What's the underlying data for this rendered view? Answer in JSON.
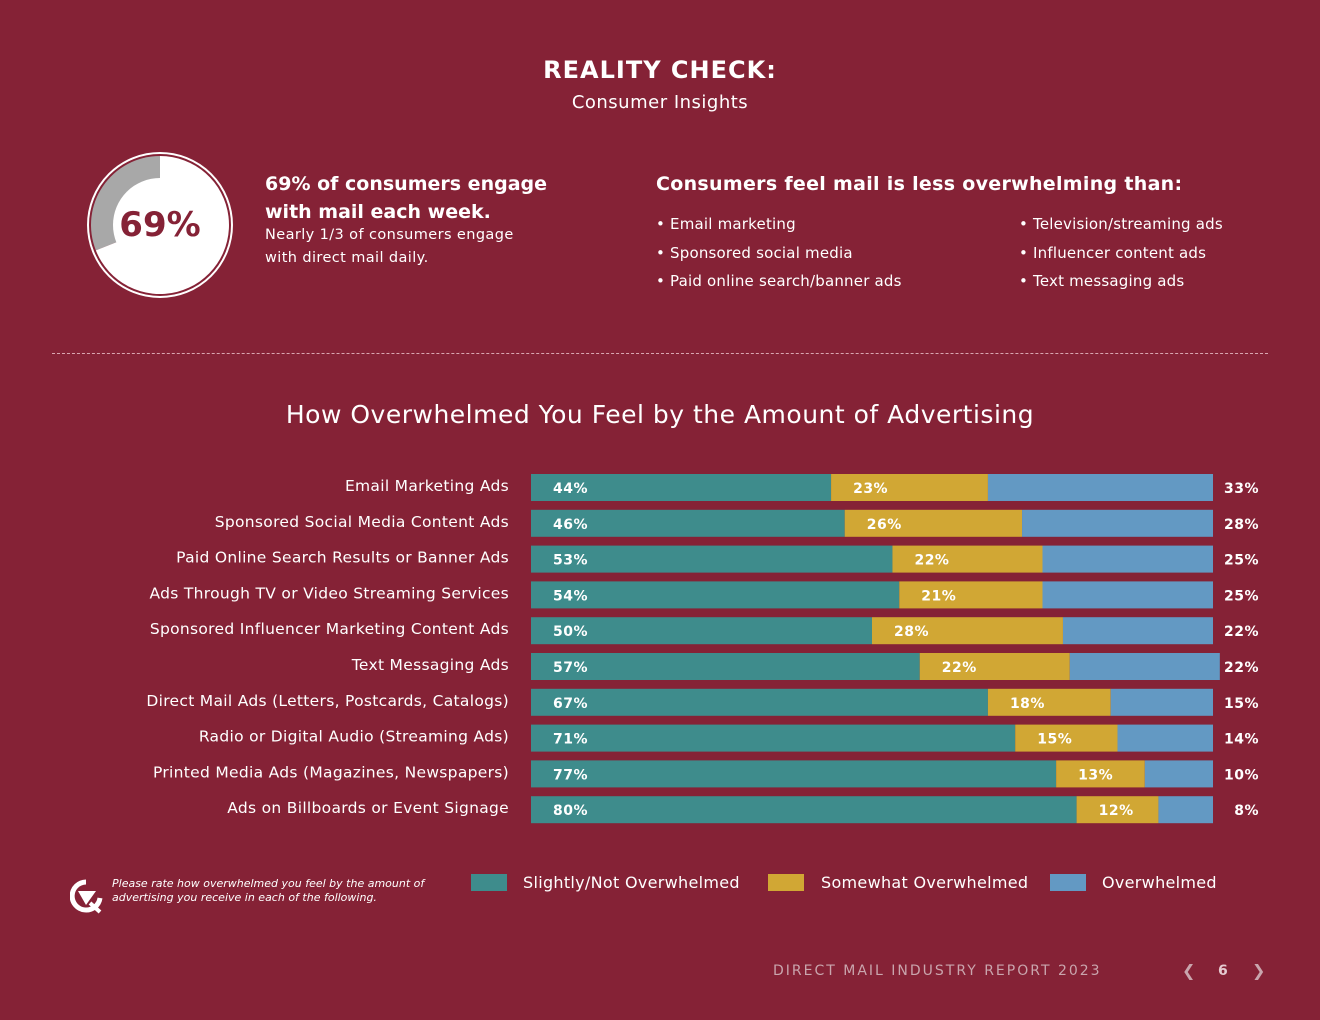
{
  "header": {
    "title": "REALITY CHECK:",
    "subtitle": "Consumer Insights"
  },
  "stat": {
    "donut_label": "69%",
    "donut_value": 69,
    "headline": "69% of consumers engage with mail each week.",
    "detail": "Nearly 1/3 of consumers engage with direct mail daily."
  },
  "less_overwhelming": {
    "title": "Consumers feel mail is less overwhelming than:",
    "left": [
      "• Email marketing",
      "• Sponsored social media",
      "• Paid online search/banner ads"
    ],
    "right": [
      "• Television/streaming ads",
      "• Influencer content ads",
      "• Text messaging ads"
    ]
  },
  "chart_data": {
    "type": "bar",
    "orientation": "horizontal",
    "stacked": true,
    "title": "How Overwhelmed You Feel by the Amount of Advertising",
    "categories": [
      "Email Marketing Ads",
      "Sponsored Social Media Content Ads",
      "Paid Online Search Results or Banner Ads",
      "Ads Through TV or Video Streaming Services",
      "Sponsored Influencer Marketing Content Ads",
      "Text Messaging Ads",
      "Direct Mail Ads (Letters, Postcards, Catalogs)",
      "Radio or Digital Audio (Streaming Ads)",
      "Printed Media Ads (Magazines, Newspapers)",
      "Ads on Billboards or Event Signage"
    ],
    "series": [
      {
        "name": "Slightly/Not Overwhelmed",
        "color": "#3e8c8c",
        "values": [
          44,
          46,
          53,
          54,
          50,
          57,
          67,
          71,
          77,
          80
        ]
      },
      {
        "name": "Somewhat Overwhelmed",
        "color": "#d1a734",
        "values": [
          23,
          26,
          22,
          21,
          28,
          22,
          18,
          15,
          13,
          12
        ]
      },
      {
        "name": "Overwhelmed",
        "color": "#6399c3",
        "values": [
          33,
          28,
          25,
          25,
          22,
          22,
          15,
          14,
          10,
          8
        ]
      }
    ],
    "xlim": [
      0,
      100
    ],
    "unit": "%",
    "legend_position": "bottom"
  },
  "footnote": "Please rate how overwhelmed you feel by the amount of advertising you receive in each of the following.",
  "footer": {
    "report": "DIRECT MAIL INDUSTRY REPORT 2023",
    "prev": "❮",
    "page": "6",
    "next": "❯"
  }
}
